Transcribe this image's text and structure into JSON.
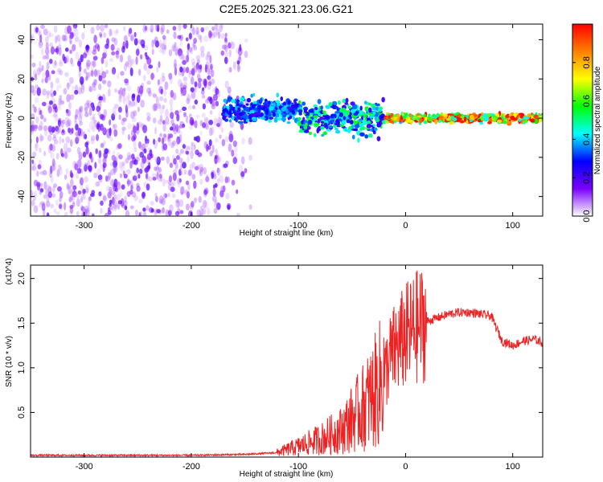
{
  "title": "C2E5.2025.321.23.06.G21",
  "colorbar": {
    "label": "Normalized spectral amplitude",
    "ticks": [
      "0.0",
      "0.2",
      "0.4",
      "0.6",
      "0.8"
    ],
    "tick_values": [
      0.0,
      0.2,
      0.4,
      0.6,
      0.8
    ],
    "range": [
      0,
      1
    ],
    "colormap": "rainbow",
    "colors": [
      "#ffffff",
      "#7b00ff",
      "#0000ff",
      "#00ffff",
      "#00ff00",
      "#ffff00",
      "#ff8000",
      "#ff0000"
    ]
  },
  "chart_data": [
    {
      "type": "heatmap",
      "title": "C2E5.2025.321.23.06.G21",
      "xlabel": "Height of straight line (km)",
      "ylabel": "Frequency (Hz)",
      "xlim": [
        -350,
        128
      ],
      "ylim": [
        -50,
        48
      ],
      "xticks": [
        -300,
        -200,
        -100,
        0,
        100
      ],
      "xtick_labels": [
        "-300",
        "-200",
        "-100",
        "0",
        "100"
      ],
      "yticks": [
        -40,
        -20,
        0,
        20,
        40
      ],
      "ytick_labels": [
        "-40",
        "-20",
        "0",
        "20",
        "40"
      ],
      "regions": [
        {
          "x_range": [
            -350,
            -140
          ],
          "freq_range": [
            -50,
            48
          ],
          "amplitude": [
            0.0,
            0.15
          ]
        },
        {
          "x_range": [
            -170,
            -100
          ],
          "freq_center": 4,
          "freq_spread": 6,
          "amplitude": [
            0.1,
            0.35
          ]
        },
        {
          "x_range": [
            -100,
            -20
          ],
          "freq_center": 0,
          "freq_spread": 8,
          "amplitude": [
            0.1,
            0.5
          ]
        },
        {
          "x_range": [
            -20,
            128
          ],
          "freq_center": 0,
          "freq_spread": 2,
          "amplitude": [
            0.3,
            1.0
          ]
        }
      ]
    },
    {
      "type": "line",
      "xlabel": "Height of straight line (km)",
      "ylabel": "SNR (10 * v/v)",
      "multiplier": "(x10^4)",
      "xlim": [
        -350,
        128
      ],
      "ylim": [
        0,
        2.15
      ],
      "xticks": [
        -300,
        -200,
        -100,
        0,
        100
      ],
      "xtick_labels": [
        "-300",
        "-200",
        "-100",
        "0",
        "100"
      ],
      "yticks": [
        0.5,
        1.0,
        1.5,
        2.0
      ],
      "ytick_labels": [
        "0.5",
        "1.0",
        "1.5",
        "2.0"
      ],
      "series": [
        {
          "color": "#ee2222",
          "x": [
            -350,
            -300,
            -250,
            -200,
            -150,
            -120,
            -100,
            -80,
            -60,
            -40,
            -30,
            -20,
            -15,
            -10,
            0,
            10,
            20,
            30,
            40,
            50,
            60,
            70,
            80,
            90,
            100,
            110,
            120,
            128
          ],
          "y": [
            0.02,
            0.02,
            0.02,
            0.02,
            0.03,
            0.05,
            0.12,
            0.2,
            0.3,
            0.55,
            0.7,
            0.9,
            1.1,
            1.2,
            1.35,
            1.45,
            1.52,
            1.56,
            1.6,
            1.62,
            1.62,
            1.6,
            1.58,
            1.3,
            1.25,
            1.3,
            1.32,
            1.28
          ]
        }
      ]
    }
  ]
}
